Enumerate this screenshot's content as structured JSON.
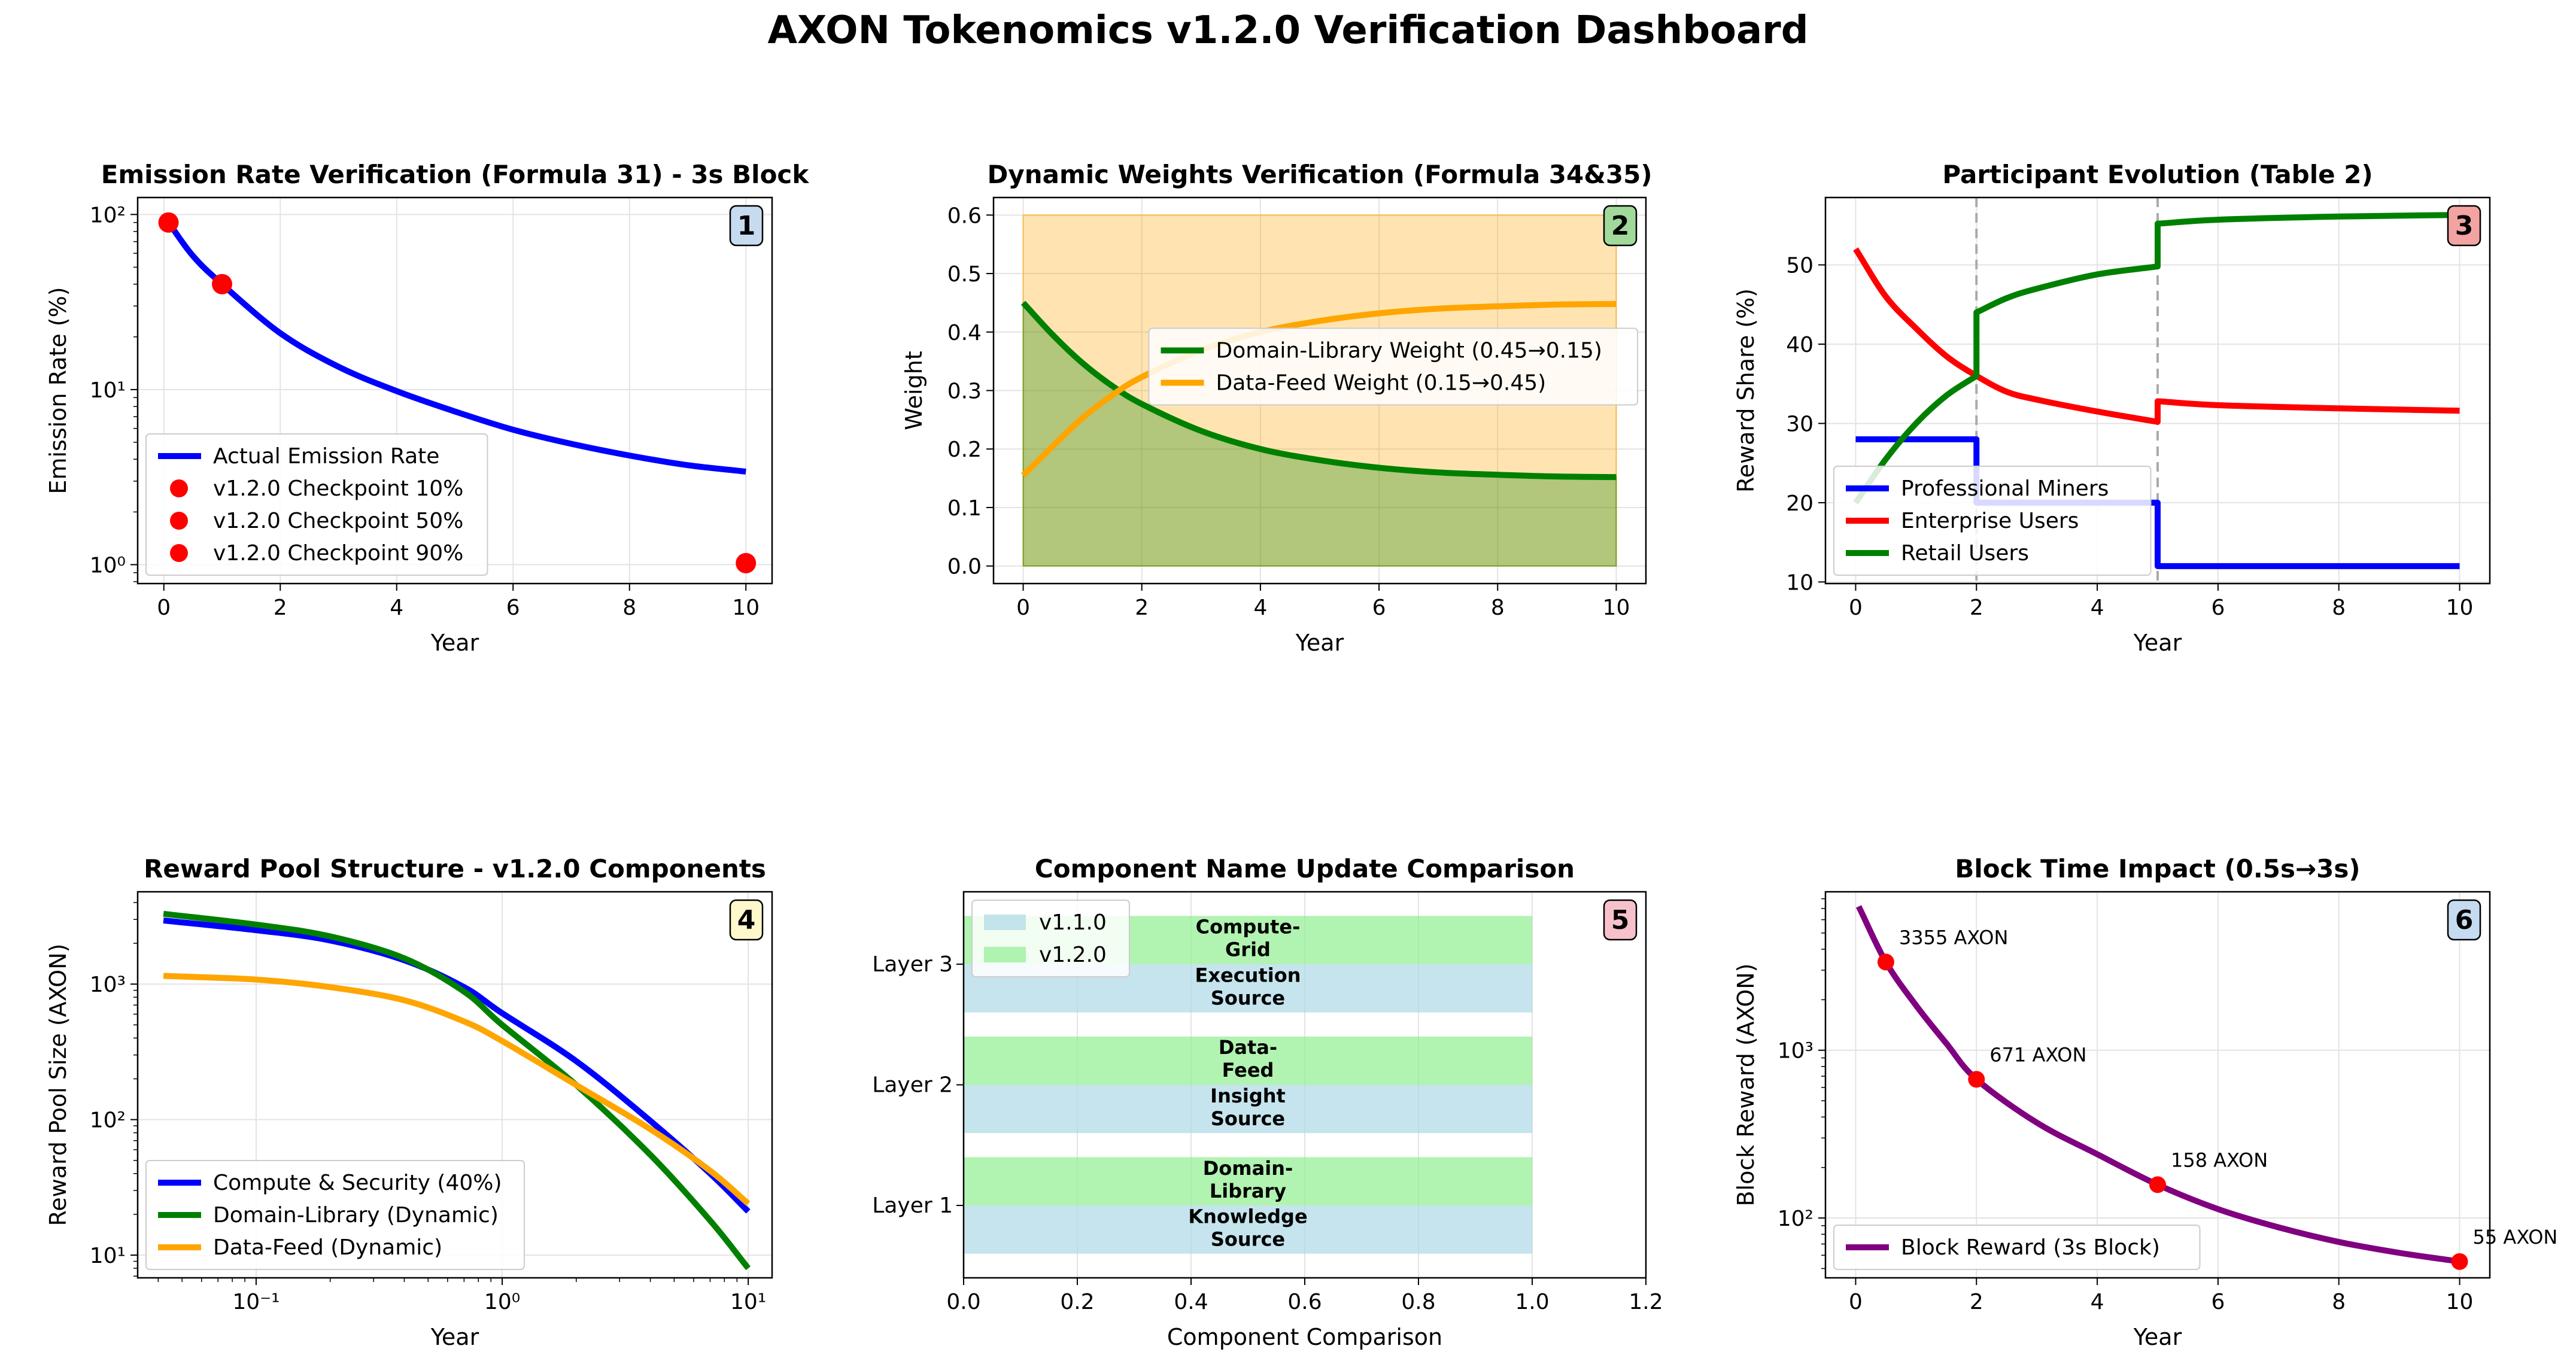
{
  "page_title": "AXON Tokenomics v1.2.0 Verification Dashboard",
  "colors": {
    "blue": "#0000ff",
    "red": "#ff0000",
    "green": "#008000",
    "orange": "#ffa500",
    "purple": "#800080",
    "light_blue": "#add8e6",
    "light_green": "#90ee90",
    "orange_fill": "#ffa500",
    "green_fill": "#008000"
  },
  "chart_data": [
    {
      "id": 1,
      "badge": "1",
      "badge_color": "#c6dbef",
      "type": "line",
      "title": "Emission Rate Verification (Formula 31) - 3s Block",
      "xlabel": "Year",
      "ylabel": "Emission Rate (%)",
      "xlim": [
        -0.45,
        10.45
      ],
      "ylim": [
        0.78,
        125
      ],
      "yscale": "log",
      "xticks": [
        0,
        2,
        4,
        6,
        8,
        10
      ],
      "yticks": [
        1,
        10,
        100
      ],
      "ytick_labels": [
        "10⁰",
        "10¹",
        "10²"
      ],
      "grid": true,
      "legend": "lower-left",
      "series": [
        {
          "name": "Actual Emission Rate",
          "color": "#0000ff",
          "style": "line",
          "x": [
            0.08,
            0.5,
            1,
            2,
            3,
            4,
            5,
            6,
            7,
            8,
            9,
            10
          ],
          "y": [
            90,
            58,
            40,
            21,
            13.5,
            9.8,
            7.5,
            5.9,
            4.9,
            4.2,
            3.7,
            3.4
          ]
        },
        {
          "name": "v1.2.0 Checkpoint 10%",
          "color": "#ff0000",
          "style": "marker",
          "x": [
            0.08
          ],
          "y": [
            90
          ]
        },
        {
          "name": "v1.2.0 Checkpoint 50%",
          "color": "#ff0000",
          "style": "marker",
          "x": [
            1
          ],
          "y": [
            40
          ]
        },
        {
          "name": "v1.2.0 Checkpoint 90%",
          "color": "#ff0000",
          "style": "marker",
          "x": [
            10
          ],
          "y": [
            1.02
          ]
        }
      ]
    },
    {
      "id": 2,
      "badge": "2",
      "badge_color": "#a1d99b",
      "type": "area",
      "title": "Dynamic Weights Verification (Formula 34&35)",
      "xlabel": "Year",
      "ylabel": "Weight",
      "xlim": [
        -0.5,
        10.5
      ],
      "ylim": [
        -0.03,
        0.63
      ],
      "yscale": "linear",
      "xticks": [
        0,
        2,
        4,
        6,
        8,
        10
      ],
      "yticks": [
        0.0,
        0.1,
        0.2,
        0.3,
        0.4,
        0.5,
        0.6
      ],
      "ytick_labels": [
        "0.0",
        "0.1",
        "0.2",
        "0.3",
        "0.4",
        "0.5",
        "0.6"
      ],
      "grid": true,
      "legend": "center-right",
      "fill_top": 0.6,
      "series": [
        {
          "name": "Domain-Library Weight (0.45→0.15)",
          "color": "#008000",
          "style": "line",
          "x": [
            0,
            0.5,
            1,
            1.5,
            2,
            3,
            4,
            5,
            6,
            7,
            8,
            9,
            10
          ],
          "y": [
            0.45,
            0.395,
            0.347,
            0.308,
            0.277,
            0.231,
            0.2,
            0.181,
            0.168,
            0.16,
            0.156,
            0.153,
            0.152
          ]
        },
        {
          "name": "Data-Feed Weight (0.15→0.45)",
          "color": "#ffa500",
          "style": "line",
          "x": [
            0,
            0.5,
            1,
            1.5,
            2,
            3,
            4,
            5,
            6,
            7,
            8,
            9,
            10
          ],
          "y": [
            0.155,
            0.205,
            0.253,
            0.292,
            0.323,
            0.369,
            0.4,
            0.419,
            0.432,
            0.44,
            0.444,
            0.447,
            0.448
          ]
        }
      ]
    },
    {
      "id": 3,
      "badge": "3",
      "badge_color": "#f4a3a3",
      "type": "line",
      "title": "Participant Evolution (Table 2)",
      "xlabel": "Year",
      "ylabel": "Reward Share (%)",
      "xlim": [
        -0.5,
        10.5
      ],
      "ylim": [
        9.8,
        58.5
      ],
      "yscale": "linear",
      "xticks": [
        0,
        2,
        4,
        6,
        8,
        10
      ],
      "yticks": [
        10,
        20,
        30,
        40,
        50
      ],
      "ytick_labels": [
        "10",
        "20",
        "30",
        "40",
        "50"
      ],
      "grid": true,
      "legend": "lower-left",
      "vlines": [
        2,
        5
      ],
      "series": [
        {
          "name": "Professional Miners",
          "color": "#0000ff",
          "style": "line",
          "x": [
            0,
            2,
            2,
            5,
            5,
            10
          ],
          "y": [
            28,
            28,
            20,
            20,
            12,
            12
          ]
        },
        {
          "name": "Enterprise Users",
          "color": "#ff0000",
          "style": "line",
          "x": [
            0,
            0.5,
            1,
            1.5,
            2,
            2.5,
            3,
            4,
            5,
            5,
            6,
            8,
            10
          ],
          "y": [
            52,
            46,
            42,
            38.5,
            36,
            34,
            33,
            31.5,
            30.2,
            32.8,
            32.3,
            31.9,
            31.6
          ]
        },
        {
          "name": "Retail Users",
          "color": "#008000",
          "style": "line",
          "x": [
            0,
            0.5,
            1,
            1.5,
            2,
            2,
            2.5,
            3,
            4,
            5,
            5,
            6,
            8,
            10
          ],
          "y": [
            20,
            25.5,
            30,
            33.5,
            36,
            44,
            45.8,
            47,
            48.8,
            49.8,
            55.2,
            55.7,
            56.1,
            56.3
          ]
        }
      ]
    },
    {
      "id": 4,
      "badge": "4",
      "badge_color": "#fff8cc",
      "type": "line",
      "title": "Reward Pool Structure - v1.2.0 Components",
      "xlabel": "Year",
      "ylabel": "Reward Pool Size (AXON)",
      "xscale": "log",
      "yscale": "log",
      "xlim": [
        0.033,
        12.5
      ],
      "ylim": [
        6.8,
        4800
      ],
      "xticks": [
        0.1,
        1,
        10
      ],
      "xtick_labels": [
        "10⁻¹",
        "10⁰",
        "10¹"
      ],
      "yticks": [
        10,
        100,
        1000
      ],
      "ytick_labels": [
        "10¹",
        "10²",
        "10³"
      ],
      "grid": true,
      "legend": "lower-left",
      "series": [
        {
          "name": "Compute & Security (40%)",
          "color": "#0000ff",
          "style": "line",
          "x": [
            0.042,
            0.1,
            0.2,
            0.4,
            0.7,
            1,
            2,
            4,
            7,
            10
          ],
          "y": [
            2950,
            2500,
            2100,
            1500,
            950,
            610,
            270,
            98,
            40,
            21
          ]
        },
        {
          "name": "Domain-Library (Dynamic)",
          "color": "#008000",
          "style": "line",
          "x": [
            0.042,
            0.1,
            0.2,
            0.4,
            0.7,
            1,
            2,
            4,
            7,
            10
          ],
          "y": [
            3300,
            2750,
            2250,
            1550,
            880,
            500,
            180,
            55,
            18,
            8
          ]
        },
        {
          "name": "Data-Feed (Dynamic)",
          "color": "#ffa500",
          "style": "line",
          "x": [
            0.042,
            0.1,
            0.2,
            0.4,
            0.7,
            1,
            2,
            4,
            7,
            10
          ],
          "y": [
            1150,
            1080,
            950,
            760,
            530,
            380,
            180,
            85,
            42,
            24
          ]
        }
      ]
    },
    {
      "id": 5,
      "badge": "5",
      "badge_color": "#f7c1cc",
      "type": "bar",
      "title": "Component Name Update Comparison",
      "xlabel": "Component Comparison",
      "ylabel": "",
      "xlim": [
        0,
        1.2
      ],
      "ylim": [
        -0.6,
        2.6
      ],
      "xticks": [
        0.0,
        0.2,
        0.4,
        0.6,
        0.8,
        1.0,
        1.2
      ],
      "xtick_labels": [
        "0.0",
        "0.2",
        "0.4",
        "0.6",
        "0.8",
        "1.0",
        "1.2"
      ],
      "categories": [
        "Layer 1",
        "Layer 2",
        "Layer 3"
      ],
      "grid": true,
      "legend": "upper-left",
      "series": [
        {
          "name": "v1.1.0",
          "color": "#add8e6",
          "values": [
            1,
            1,
            1
          ],
          "labels": [
            [
              "Knowledge",
              "Source"
            ],
            [
              "Insight",
              "Source"
            ],
            [
              "Execution",
              "Source"
            ]
          ]
        },
        {
          "name": "v1.2.0",
          "color": "#90ee90",
          "values": [
            1,
            1,
            1
          ],
          "labels": [
            [
              "Domain-",
              "Library"
            ],
            [
              "Data-",
              "Feed"
            ],
            [
              "Compute-",
              "Grid"
            ]
          ]
        }
      ]
    },
    {
      "id": 6,
      "badge": "6",
      "badge_color": "#c6dbef",
      "type": "line",
      "title": "Block Time Impact (0.5s→3s)",
      "xlabel": "Year",
      "ylabel": "Block Reward (AXON)",
      "xlim": [
        -0.5,
        10.5
      ],
      "ylim": [
        44,
        8800
      ],
      "yscale": "log",
      "xticks": [
        0,
        2,
        4,
        6,
        8,
        10
      ],
      "yticks": [
        100,
        1000
      ],
      "ytick_labels": [
        "10²",
        "10³"
      ],
      "grid": true,
      "legend": "lower-left",
      "series": [
        {
          "name": "Block Reward (3s Block)",
          "color": "#800080",
          "style": "line",
          "x": [
            0.05,
            0.5,
            1,
            1.5,
            2,
            3,
            4,
            5,
            6,
            7,
            8,
            9,
            10
          ],
          "y": [
            7200,
            3355,
            1850,
            1100,
            671,
            370,
            240,
            158,
            113,
            88,
            72,
            62,
            55
          ]
        }
      ],
      "annotations": [
        {
          "x": 0.5,
          "y": 3355,
          "text": "3355 AXON"
        },
        {
          "x": 2,
          "y": 671,
          "text": "671 AXON"
        },
        {
          "x": 5,
          "y": 158,
          "text": "158 AXON"
        },
        {
          "x": 10,
          "y": 55,
          "text": "55 AXON"
        }
      ]
    }
  ]
}
